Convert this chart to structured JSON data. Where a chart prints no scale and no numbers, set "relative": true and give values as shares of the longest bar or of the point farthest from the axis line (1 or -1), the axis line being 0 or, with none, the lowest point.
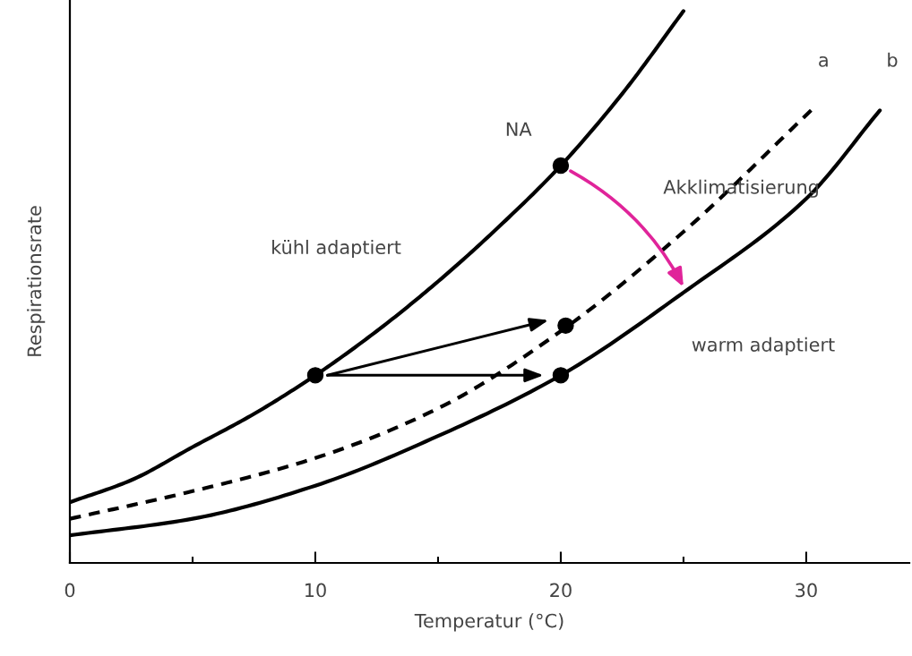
{
  "chart_data": {
    "type": "line",
    "relative": true,
    "xlabel": "Temperatur (°C)",
    "ylabel": "Respirationsrate",
    "xlim": [
      0,
      34.2
    ],
    "xticks": [
      0,
      {
        "value": 5,
        "label": null
      },
      10,
      {
        "value": 15,
        "label": null
      },
      20,
      {
        "value": 25,
        "label": null
      },
      30
    ],
    "grid": false,
    "legend": false,
    "series": [
      {
        "color": "#000000",
        "line_style": "solid",
        "x": [
          0,
          2.5,
          5,
          7.5,
          10,
          12.5,
          15,
          17.5,
          20,
          22.5,
          25
        ],
        "values": [
          0.11,
          0.15,
          0.21,
          0.27,
          0.34,
          0.42,
          0.51,
          0.61,
          0.72,
          0.85,
          1.0
        ]
      },
      {
        "name": "a",
        "color": "#000000",
        "line_style": "dashed",
        "x": [
          0,
          5,
          10,
          15,
          20,
          25,
          30.2
        ],
        "values": [
          0.08,
          0.13,
          0.19,
          0.28,
          0.42,
          0.6,
          0.82
        ]
      },
      {
        "name": "b",
        "color": "#000000",
        "line_style": "solid",
        "x": [
          0,
          5,
          10,
          15,
          20,
          25,
          30,
          33
        ],
        "values": [
          0.05,
          0.08,
          0.14,
          0.23,
          0.34,
          0.49,
          0.66,
          0.82
        ]
      },
      {
        "type": "scatter",
        "marker": "circle",
        "color": "#000000",
        "x": [
          10,
          20,
          20.2,
          20
        ],
        "values": [
          0.34,
          0.72,
          0.43,
          0.34
        ]
      }
    ],
    "annotations": [
      {
        "text": "NA",
        "x": 20,
        "y": 0.72
      },
      "Akklimatisierung",
      "kühl adaptiert",
      "warm adaptiert"
    ]
  }
}
